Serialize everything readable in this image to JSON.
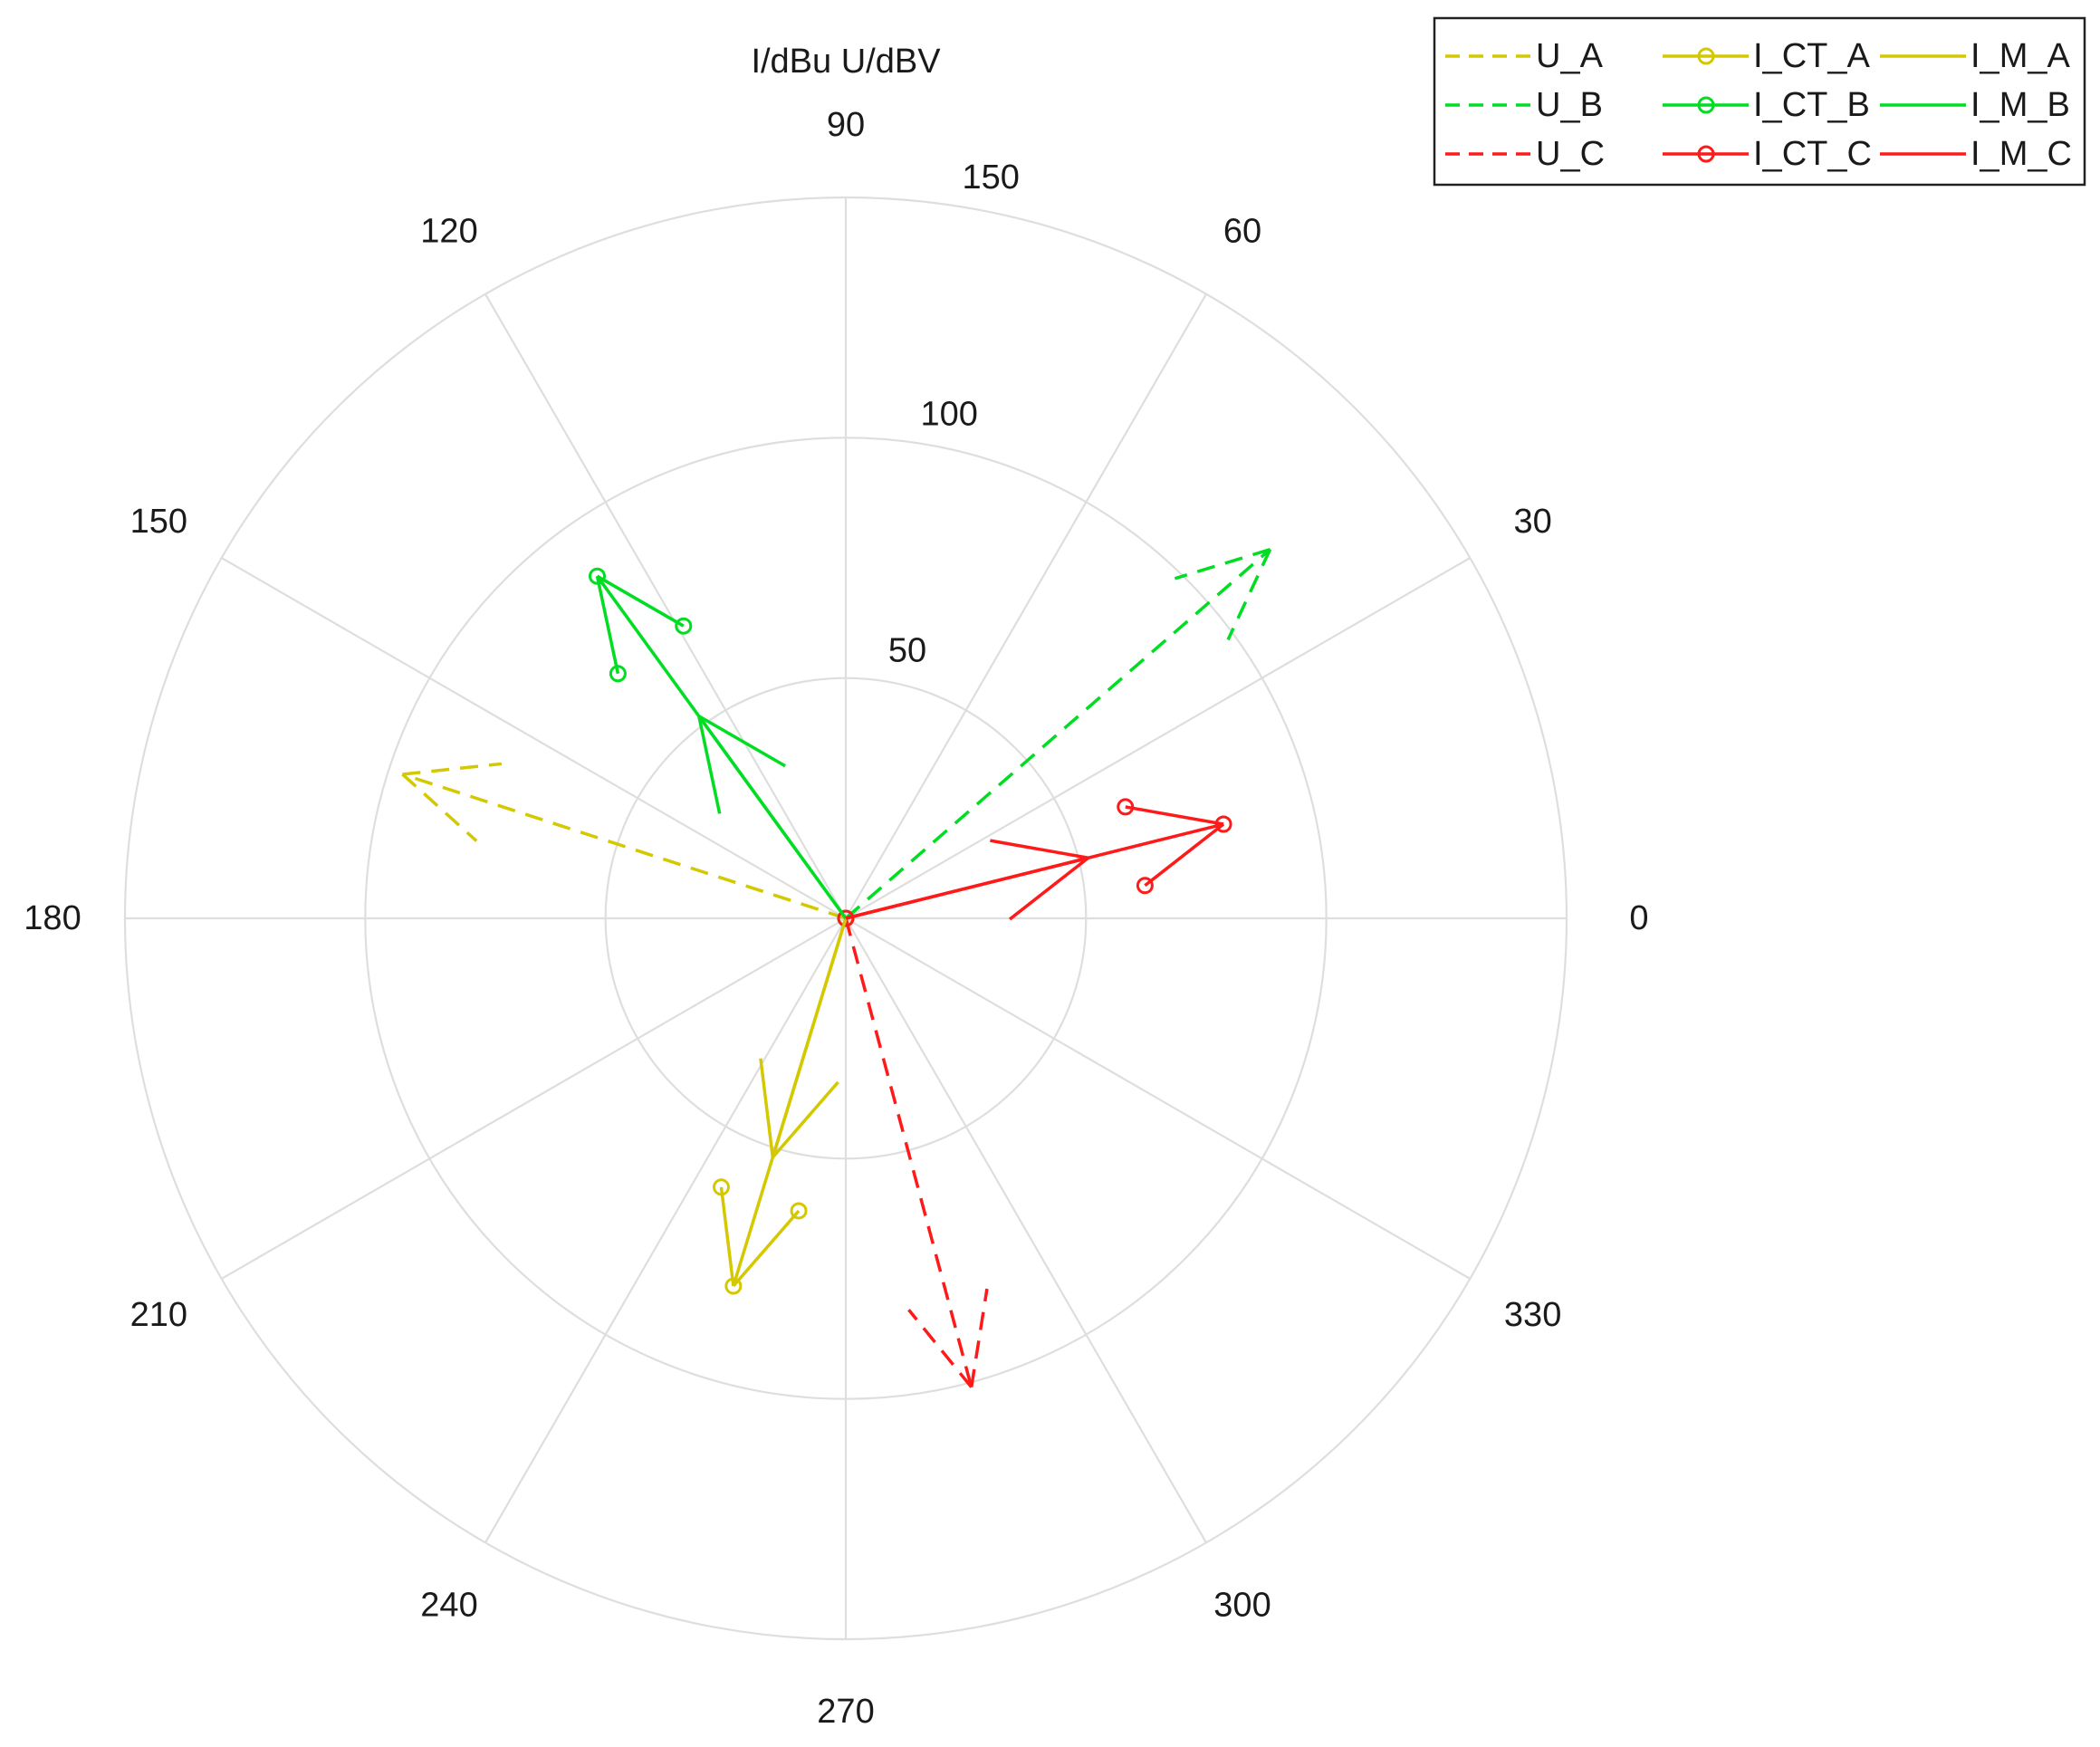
{
  "chart_data": {
    "type": "polar",
    "axis_label": "I/dBu  U/dBV",
    "r_ticks": [
      50,
      100,
      150
    ],
    "r_max": 150,
    "theta_ticks": [
      0,
      30,
      60,
      90,
      120,
      150,
      180,
      210,
      240,
      270,
      300,
      330
    ],
    "grid": true,
    "legend_position": "top-right",
    "colors": {
      "A": "#d4c800",
      "B": "#00dd22",
      "C": "#ff1a1a",
      "grid": "#dedede"
    },
    "series": [
      {
        "name": "U_A",
        "phase": "A",
        "style": "dashed",
        "marker": "none",
        "angle": 162,
        "magnitude": 97
      },
      {
        "name": "U_B",
        "phase": "B",
        "style": "dashed",
        "marker": "none",
        "angle": 41,
        "magnitude": 117
      },
      {
        "name": "U_C",
        "phase": "C",
        "style": "dashed",
        "marker": "none",
        "angle": 285,
        "magnitude": 101
      },
      {
        "name": "I_CT_A",
        "phase": "A",
        "style": "solid",
        "marker": "circle",
        "angle": 253,
        "magnitude": 80
      },
      {
        "name": "I_CT_B",
        "phase": "B",
        "style": "solid",
        "marker": "circle",
        "angle": 126,
        "magnitude": 88
      },
      {
        "name": "I_CT_C",
        "phase": "C",
        "style": "solid",
        "marker": "circle",
        "angle": 14,
        "magnitude": 81
      },
      {
        "name": "I_M_A",
        "phase": "A",
        "style": "solid",
        "marker": "none",
        "angle": 253,
        "magnitude": 52
      },
      {
        "name": "I_M_B",
        "phase": "B",
        "style": "solid",
        "marker": "none",
        "angle": 126,
        "magnitude": 52
      },
      {
        "name": "I_M_C",
        "phase": "C",
        "style": "solid",
        "marker": "none",
        "angle": 14,
        "magnitude": 52
      }
    ]
  }
}
